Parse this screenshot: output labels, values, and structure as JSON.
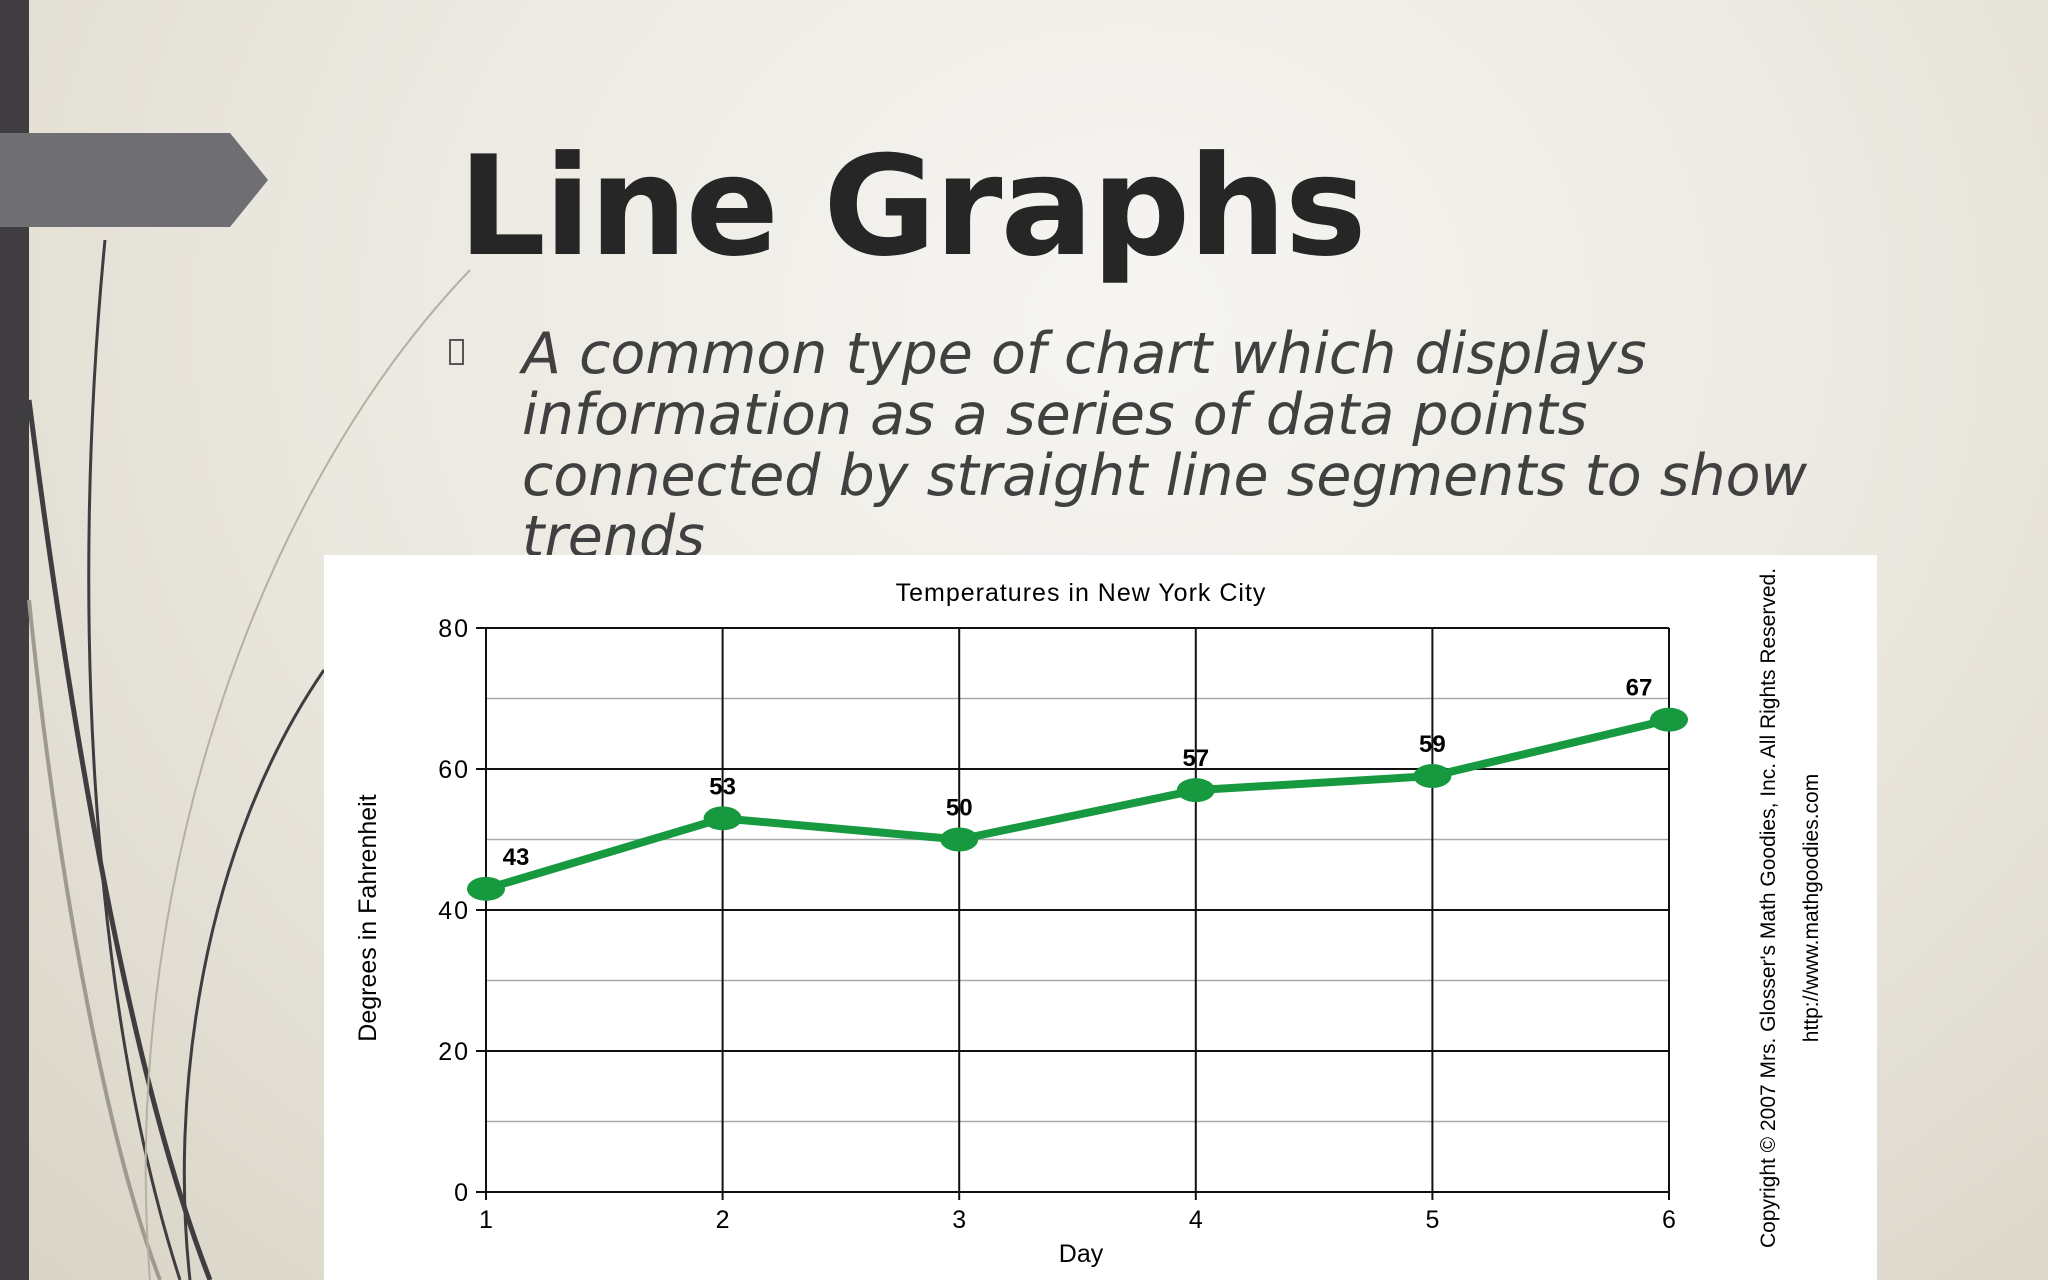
{
  "slide": {
    "title": "Line Graphs",
    "bullet": "A common type of chart which displays information as a series of data points connected by straight line segments to show trends"
  },
  "chart_data": {
    "type": "line",
    "title": "Temperatures in New York City",
    "x_label": "Day",
    "y_label": "Degrees in Fahrenheit",
    "x": [
      1,
      2,
      3,
      4,
      5,
      6
    ],
    "values": [
      43,
      53,
      50,
      57,
      59,
      67
    ],
    "color": "#16993f",
    "xlim": [
      1,
      6
    ],
    "xticks": [
      1,
      2,
      3,
      4,
      5,
      6
    ],
    "ylim": [
      0,
      80
    ],
    "yticks": [
      0,
      20,
      40,
      60,
      80
    ],
    "minor_yticks": [
      10,
      30,
      50,
      70
    ],
    "grid": true,
    "annotations": [
      "Copyright © 2007 Mrs. Glosser's Math Goodies, Inc. All Rights Reserved.",
      "http://www.mathgoodies.com"
    ]
  }
}
